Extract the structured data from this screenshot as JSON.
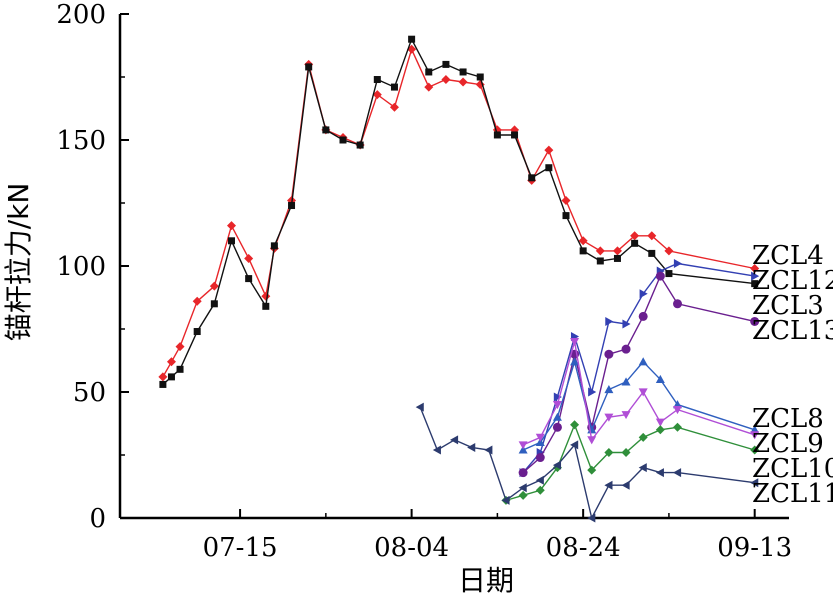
{
  "chart_data": {
    "type": "line",
    "title": "",
    "xlabel": "日期",
    "ylabel": "锚杆拉力/kN",
    "xlim": [
      "2023-07-01",
      "2023-09-17"
    ],
    "ylim": [
      0,
      200
    ],
    "x_ticks": [
      "07-15",
      "08-04",
      "08-24",
      "09-13"
    ],
    "y_ticks": [
      0,
      50,
      100,
      150,
      200
    ],
    "grid": false,
    "legend": "labels at right end of each series",
    "series": [
      {
        "name": "ZCL4",
        "color": "#e8262a",
        "marker": "diamond",
        "points": [
          [
            "2023-07-06",
            56
          ],
          [
            "2023-07-07",
            62
          ],
          [
            "2023-07-08",
            68
          ],
          [
            "2023-07-10",
            86
          ],
          [
            "2023-07-12",
            92
          ],
          [
            "2023-07-14",
            116
          ],
          [
            "2023-07-16",
            103
          ],
          [
            "2023-07-18",
            88
          ],
          [
            "2023-07-19",
            107
          ],
          [
            "2023-07-21",
            126
          ],
          [
            "2023-07-23",
            180
          ],
          [
            "2023-07-25",
            154
          ],
          [
            "2023-07-27",
            151
          ],
          [
            "2023-07-29",
            148
          ],
          [
            "2023-07-31",
            168
          ],
          [
            "2023-08-02",
            163
          ],
          [
            "2023-08-04",
            186
          ],
          [
            "2023-08-06",
            171
          ],
          [
            "2023-08-08",
            174
          ],
          [
            "2023-08-10",
            173
          ],
          [
            "2023-08-12",
            172
          ],
          [
            "2023-08-14",
            154
          ],
          [
            "2023-08-16",
            154
          ],
          [
            "2023-08-18",
            134
          ],
          [
            "2023-08-20",
            146
          ],
          [
            "2023-08-22",
            126
          ],
          [
            "2023-08-24",
            110
          ],
          [
            "2023-08-26",
            106
          ],
          [
            "2023-08-28",
            106
          ],
          [
            "2023-08-30",
            112
          ],
          [
            "2023-09-01",
            112
          ],
          [
            "2023-09-03",
            106
          ],
          [
            "2023-09-13",
            99
          ]
        ]
      },
      {
        "name": "ZCL3",
        "color": "#111111",
        "marker": "square",
        "points": [
          [
            "2023-07-06",
            53
          ],
          [
            "2023-07-07",
            56
          ],
          [
            "2023-07-08",
            59
          ],
          [
            "2023-07-10",
            74
          ],
          [
            "2023-07-12",
            85
          ],
          [
            "2023-07-14",
            110
          ],
          [
            "2023-07-16",
            95
          ],
          [
            "2023-07-18",
            84
          ],
          [
            "2023-07-19",
            108
          ],
          [
            "2023-07-21",
            124
          ],
          [
            "2023-07-23",
            179
          ],
          [
            "2023-07-25",
            154
          ],
          [
            "2023-07-27",
            150
          ],
          [
            "2023-07-29",
            148
          ],
          [
            "2023-07-31",
            174
          ],
          [
            "2023-08-02",
            171
          ],
          [
            "2023-08-04",
            190
          ],
          [
            "2023-08-06",
            177
          ],
          [
            "2023-08-08",
            180
          ],
          [
            "2023-08-10",
            177
          ],
          [
            "2023-08-12",
            175
          ],
          [
            "2023-08-14",
            152
          ],
          [
            "2023-08-16",
            152
          ],
          [
            "2023-08-18",
            135
          ],
          [
            "2023-08-20",
            139
          ],
          [
            "2023-08-22",
            120
          ],
          [
            "2023-08-24",
            106
          ],
          [
            "2023-08-26",
            102
          ],
          [
            "2023-08-28",
            103
          ],
          [
            "2023-08-30",
            109
          ],
          [
            "2023-09-01",
            105
          ],
          [
            "2023-09-03",
            97
          ],
          [
            "2023-09-13",
            93
          ]
        ]
      },
      {
        "name": "ZCL12",
        "color": "#3340b3",
        "marker": "triangle-right",
        "points": [
          [
            "2023-08-17",
            18
          ],
          [
            "2023-08-19",
            26
          ],
          [
            "2023-08-21",
            48
          ],
          [
            "2023-08-23",
            72
          ],
          [
            "2023-08-25",
            50
          ],
          [
            "2023-08-27",
            78
          ],
          [
            "2023-08-29",
            77
          ],
          [
            "2023-08-31",
            89
          ],
          [
            "2023-09-02",
            98
          ],
          [
            "2023-09-04",
            101
          ],
          [
            "2023-09-13",
            96
          ]
        ]
      },
      {
        "name": "ZCL13",
        "color": "#6a1f8f",
        "marker": "circle",
        "points": [
          [
            "2023-08-17",
            18
          ],
          [
            "2023-08-19",
            24
          ],
          [
            "2023-08-21",
            36
          ],
          [
            "2023-08-23",
            65
          ],
          [
            "2023-08-25",
            36
          ],
          [
            "2023-08-27",
            65
          ],
          [
            "2023-08-29",
            67
          ],
          [
            "2023-08-31",
            80
          ],
          [
            "2023-09-02",
            96
          ],
          [
            "2023-09-04",
            85
          ],
          [
            "2023-09-13",
            78
          ]
        ]
      },
      {
        "name": "ZCL8",
        "color": "#2f5fbf",
        "marker": "triangle-up",
        "points": [
          [
            "2023-08-17",
            27
          ],
          [
            "2023-08-19",
            30
          ],
          [
            "2023-08-21",
            40
          ],
          [
            "2023-08-23",
            62
          ],
          [
            "2023-08-25",
            35
          ],
          [
            "2023-08-27",
            51
          ],
          [
            "2023-08-29",
            54
          ],
          [
            "2023-08-31",
            62
          ],
          [
            "2023-09-02",
            55
          ],
          [
            "2023-09-04",
            45
          ],
          [
            "2023-09-13",
            35
          ]
        ]
      },
      {
        "name": "ZCL9",
        "color": "#b04ed6",
        "marker": "triangle-down",
        "points": [
          [
            "2023-08-17",
            29
          ],
          [
            "2023-08-19",
            32
          ],
          [
            "2023-08-21",
            45
          ],
          [
            "2023-08-23",
            70
          ],
          [
            "2023-08-25",
            31
          ],
          [
            "2023-08-27",
            40
          ],
          [
            "2023-08-29",
            41
          ],
          [
            "2023-08-31",
            50
          ],
          [
            "2023-09-02",
            38
          ],
          [
            "2023-09-04",
            43
          ],
          [
            "2023-09-13",
            33
          ]
        ]
      },
      {
        "name": "ZCL10",
        "color": "#2f8f3a",
        "marker": "diamond",
        "points": [
          [
            "2023-08-15",
            7
          ],
          [
            "2023-08-17",
            9
          ],
          [
            "2023-08-19",
            11
          ],
          [
            "2023-08-21",
            20
          ],
          [
            "2023-08-23",
            37
          ],
          [
            "2023-08-25",
            19
          ],
          [
            "2023-08-27",
            26
          ],
          [
            "2023-08-29",
            26
          ],
          [
            "2023-08-31",
            32
          ],
          [
            "2023-09-02",
            35
          ],
          [
            "2023-09-04",
            36
          ],
          [
            "2023-09-13",
            27
          ]
        ]
      },
      {
        "name": "ZCL11",
        "color": "#2c3b6e",
        "marker": "triangle-left",
        "points": [
          [
            "2023-08-05",
            44
          ],
          [
            "2023-08-07",
            27
          ],
          [
            "2023-08-09",
            31
          ],
          [
            "2023-08-11",
            28
          ],
          [
            "2023-08-13",
            27
          ],
          [
            "2023-08-15",
            7
          ],
          [
            "2023-08-17",
            12
          ],
          [
            "2023-08-19",
            15
          ],
          [
            "2023-08-21",
            21
          ],
          [
            "2023-08-23",
            29
          ],
          [
            "2023-08-25",
            0
          ],
          [
            "2023-08-27",
            13
          ],
          [
            "2023-08-29",
            13
          ],
          [
            "2023-08-31",
            20
          ],
          [
            "2023-09-02",
            18
          ],
          [
            "2023-09-04",
            18
          ],
          [
            "2023-09-13",
            14
          ]
        ]
      }
    ]
  }
}
